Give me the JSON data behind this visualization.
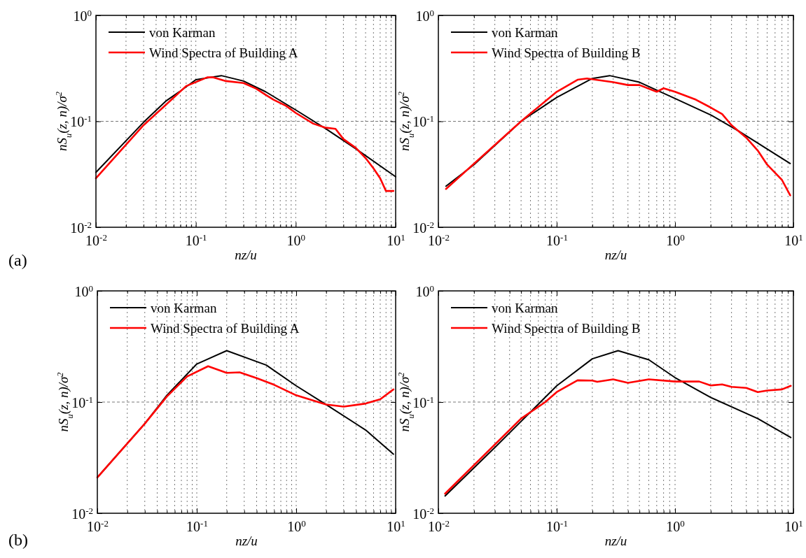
{
  "chart_data": [
    {
      "type": "line",
      "xlabel": "nz/u",
      "ylabel": "nS$_{u}$(z, n)/σ$^{2}$",
      "log": "xy",
      "grid": true,
      "legend": "top left",
      "annotations": [
        "(a)"
      ],
      "xlim": [
        0.01,
        10
      ],
      "ylim": [
        0.01,
        1
      ],
      "xticks": [
        {
          "value": 0.01,
          "label": "10$^{-2}$"
        },
        {
          "value": 0.02,
          "label": null
        },
        {
          "value": 0.03,
          "label": null
        },
        {
          "value": 0.04,
          "label": null
        },
        {
          "value": 0.05,
          "label": null
        },
        {
          "value": 0.06,
          "label": null
        },
        {
          "value": 0.07,
          "label": null
        },
        {
          "value": 0.08,
          "label": null
        },
        {
          "value": 0.09,
          "label": null
        },
        {
          "value": 0.1,
          "label": "10$^{-1}$"
        },
        {
          "value": 0.2,
          "label": null
        },
        {
          "value": 0.3,
          "label": null
        },
        {
          "value": 0.4,
          "label": null
        },
        {
          "value": 0.5,
          "label": null
        },
        {
          "value": 0.6,
          "label": null
        },
        {
          "value": 0.7,
          "label": null
        },
        {
          "value": 0.8,
          "label": null
        },
        {
          "value": 0.9,
          "label": null
        },
        {
          "value": 1,
          "label": "10$^{0}$"
        },
        {
          "value": 2,
          "label": null
        },
        {
          "value": 3,
          "label": null
        },
        {
          "value": 4,
          "label": null
        },
        {
          "value": 5,
          "label": null
        },
        {
          "value": 6,
          "label": null
        },
        {
          "value": 7,
          "label": null
        },
        {
          "value": 8,
          "label": null
        },
        {
          "value": 9,
          "label": null
        },
        {
          "value": 10,
          "label": "10$^{1}$"
        }
      ],
      "yticks": [
        {
          "value": 0.01,
          "label": "10$^{-2}$"
        },
        {
          "value": 0.1,
          "label": "10$^{-1}$"
        },
        {
          "value": 1,
          "label": "10$^{0}$"
        }
      ],
      "series": [
        {
          "name": "von Karman",
          "color": "#000000",
          "x": [
            0.01,
            0.03,
            0.05,
            0.07,
            0.1,
            0.18,
            0.3,
            0.5,
            1,
            2,
            4,
            10
          ],
          "values": [
            0.033,
            0.098,
            0.155,
            0.193,
            0.247,
            0.27,
            0.24,
            0.19,
            0.128,
            0.085,
            0.055,
            0.03
          ]
        },
        {
          "name": "Wind Spectra of Building A",
          "color": "#ff0000",
          "x": [
            0.01,
            0.03,
            0.05,
            0.08,
            0.13,
            0.15,
            0.2,
            0.3,
            0.4,
            0.5,
            0.6,
            0.8,
            1,
            1.5,
            2,
            2.5,
            3,
            4,
            5,
            6,
            7,
            8,
            9.5
          ],
          "values": [
            0.029,
            0.092,
            0.143,
            0.215,
            0.26,
            0.26,
            0.24,
            0.23,
            0.204,
            0.178,
            0.16,
            0.14,
            0.12,
            0.095,
            0.087,
            0.085,
            0.068,
            0.056,
            0.045,
            0.036,
            0.029,
            0.022,
            0.022
          ]
        }
      ]
    },
    {
      "type": "line",
      "xlabel": "nz/u",
      "ylabel": "nS$_{u}$(z, n)/σ$^{2}$",
      "log": "xy",
      "grid": true,
      "legend": "top left",
      "xlim": [
        0.01,
        10
      ],
      "ylim": [
        0.01,
        1
      ],
      "xticks": [
        {
          "value": 0.01,
          "label": "10$^{-2}$"
        },
        {
          "value": 0.02,
          "label": null
        },
        {
          "value": 0.03,
          "label": null
        },
        {
          "value": 0.04,
          "label": null
        },
        {
          "value": 0.05,
          "label": null
        },
        {
          "value": 0.06,
          "label": null
        },
        {
          "value": 0.07,
          "label": null
        },
        {
          "value": 0.08,
          "label": null
        },
        {
          "value": 0.09,
          "label": null
        },
        {
          "value": 0.1,
          "label": "10$^{-1}$"
        },
        {
          "value": 0.2,
          "label": null
        },
        {
          "value": 0.3,
          "label": null
        },
        {
          "value": 0.4,
          "label": null
        },
        {
          "value": 0.5,
          "label": null
        },
        {
          "value": 0.6,
          "label": null
        },
        {
          "value": 0.7,
          "label": null
        },
        {
          "value": 0.8,
          "label": null
        },
        {
          "value": 0.9,
          "label": null
        },
        {
          "value": 1,
          "label": "10$^{0}$"
        },
        {
          "value": 2,
          "label": null
        },
        {
          "value": 3,
          "label": null
        },
        {
          "value": 4,
          "label": null
        },
        {
          "value": 5,
          "label": null
        },
        {
          "value": 6,
          "label": null
        },
        {
          "value": 7,
          "label": null
        },
        {
          "value": 8,
          "label": null
        },
        {
          "value": 9,
          "label": null
        },
        {
          "value": 10,
          "label": "10$^{1}$"
        }
      ],
      "yticks": [
        {
          "value": 0.01,
          "label": "10$^{-2}$"
        },
        {
          "value": 0.1,
          "label": "10$^{-1}$"
        },
        {
          "value": 1,
          "label": "10$^{0}$"
        }
      ],
      "series": [
        {
          "name": "von Karman",
          "color": "#000000",
          "x": [
            0.0116,
            0.02,
            0.05,
            0.1,
            0.2,
            0.28,
            0.5,
            1,
            2,
            3.5,
            9.4
          ],
          "values": [
            0.0244,
            0.039,
            0.1,
            0.168,
            0.254,
            0.27,
            0.234,
            0.164,
            0.115,
            0.08,
            0.04
          ]
        },
        {
          "name": "Wind Spectra of Building B",
          "color": "#ff0000",
          "x": [
            0.0116,
            0.05,
            0.1,
            0.15,
            0.18,
            0.3,
            0.4,
            0.5,
            0.7,
            0.8,
            1,
            1.5,
            2,
            2.5,
            3,
            4,
            5,
            6,
            8,
            9.4
          ],
          "values": [
            0.023,
            0.1,
            0.19,
            0.247,
            0.254,
            0.234,
            0.22,
            0.22,
            0.19,
            0.205,
            0.19,
            0.16,
            0.135,
            0.117,
            0.092,
            0.07,
            0.053,
            0.039,
            0.028,
            0.02
          ]
        }
      ]
    },
    {
      "type": "line",
      "xlabel": "nz/u",
      "ylabel": "nS$_{u}$(z, n)/σ$^{2}$",
      "log": "xy",
      "grid": true,
      "legend": "top left",
      "annotations": [
        "(b)"
      ],
      "xlim": [
        0.01,
        10
      ],
      "ylim": [
        0.01,
        1
      ],
      "xticks": [
        {
          "value": 0.01,
          "label": "10$^{-2}$"
        },
        {
          "value": 0.02,
          "label": null
        },
        {
          "value": 0.03,
          "label": null
        },
        {
          "value": 0.04,
          "label": null
        },
        {
          "value": 0.05,
          "label": null
        },
        {
          "value": 0.06,
          "label": null
        },
        {
          "value": 0.07,
          "label": null
        },
        {
          "value": 0.08,
          "label": null
        },
        {
          "value": 0.09,
          "label": null
        },
        {
          "value": 0.1,
          "label": "10$^{-1}$"
        },
        {
          "value": 0.2,
          "label": null
        },
        {
          "value": 0.3,
          "label": null
        },
        {
          "value": 0.4,
          "label": null
        },
        {
          "value": 0.5,
          "label": null
        },
        {
          "value": 0.6,
          "label": null
        },
        {
          "value": 0.7,
          "label": null
        },
        {
          "value": 0.8,
          "label": null
        },
        {
          "value": 0.9,
          "label": null
        },
        {
          "value": 1,
          "label": "10$^{0}$"
        },
        {
          "value": 2,
          "label": null
        },
        {
          "value": 3,
          "label": null
        },
        {
          "value": 4,
          "label": null
        },
        {
          "value": 5,
          "label": null
        },
        {
          "value": 6,
          "label": null
        },
        {
          "value": 7,
          "label": null
        },
        {
          "value": 8,
          "label": null
        },
        {
          "value": 9,
          "label": null
        },
        {
          "value": 10,
          "label": "10$^{1}$"
        }
      ],
      "yticks": [
        {
          "value": 0.01,
          "label": "10$^{-2}$"
        },
        {
          "value": 0.1,
          "label": "10$^{-1}$"
        },
        {
          "value": 1,
          "label": "10$^{0}$"
        }
      ],
      "series": [
        {
          "name": "von Karman",
          "color": "#000000",
          "x": [
            0.01,
            0.03,
            0.05,
            0.1,
            0.2,
            0.5,
            1,
            2,
            5,
            9.5
          ],
          "values": [
            0.021,
            0.064,
            0.115,
            0.22,
            0.29,
            0.215,
            0.14,
            0.095,
            0.056,
            0.034
          ]
        },
        {
          "name": "Wind Spectra of Building A",
          "color": "#ff0000",
          "x": [
            0.01,
            0.03,
            0.05,
            0.08,
            0.13,
            0.2,
            0.27,
            0.4,
            0.6,
            1,
            2,
            3,
            5,
            7,
            9.5
          ],
          "values": [
            0.021,
            0.064,
            0.112,
            0.17,
            0.21,
            0.183,
            0.185,
            0.164,
            0.143,
            0.115,
            0.095,
            0.091,
            0.097,
            0.106,
            0.13
          ]
        }
      ]
    },
    {
      "type": "line",
      "xlabel": "nz/u",
      "ylabel": "nS$_{u}$(z, n)/σ$^{2}$",
      "log": "xy",
      "grid": true,
      "legend": "top left",
      "xlim": [
        0.01,
        10
      ],
      "ylim": [
        0.01,
        1
      ],
      "xticks": [
        {
          "value": 0.01,
          "label": "10$^{-2}$"
        },
        {
          "value": 0.02,
          "label": null
        },
        {
          "value": 0.03,
          "label": null
        },
        {
          "value": 0.04,
          "label": null
        },
        {
          "value": 0.05,
          "label": null
        },
        {
          "value": 0.06,
          "label": null
        },
        {
          "value": 0.07,
          "label": null
        },
        {
          "value": 0.08,
          "label": null
        },
        {
          "value": 0.09,
          "label": null
        },
        {
          "value": 0.1,
          "label": "10$^{-1}$"
        },
        {
          "value": 0.2,
          "label": null
        },
        {
          "value": 0.3,
          "label": null
        },
        {
          "value": 0.4,
          "label": null
        },
        {
          "value": 0.5,
          "label": null
        },
        {
          "value": 0.6,
          "label": null
        },
        {
          "value": 0.7,
          "label": null
        },
        {
          "value": 0.8,
          "label": null
        },
        {
          "value": 0.9,
          "label": null
        },
        {
          "value": 1,
          "label": "10$^{0}$"
        },
        {
          "value": 2,
          "label": null
        },
        {
          "value": 3,
          "label": null
        },
        {
          "value": 4,
          "label": null
        },
        {
          "value": 5,
          "label": null
        },
        {
          "value": 6,
          "label": null
        },
        {
          "value": 7,
          "label": null
        },
        {
          "value": 8,
          "label": null
        },
        {
          "value": 9,
          "label": null
        },
        {
          "value": 10,
          "label": "10$^{1}$"
        }
      ],
      "yticks": [
        {
          "value": 0.01,
          "label": "10$^{-2}$"
        },
        {
          "value": 0.1,
          "label": "10$^{-1}$"
        },
        {
          "value": 1,
          "label": "10$^{0}$"
        }
      ],
      "series": [
        {
          "name": "von Karman",
          "color": "#000000",
          "x": [
            0.0114,
            0.03,
            0.05,
            0.1,
            0.2,
            0.33,
            0.6,
            1,
            2,
            5,
            9.5
          ],
          "values": [
            0.0143,
            0.039,
            0.067,
            0.14,
            0.245,
            0.29,
            0.24,
            0.166,
            0.11,
            0.071,
            0.048
          ]
        },
        {
          "name": "Wind Spectra of Building B",
          "color": "#ff0000",
          "x": [
            0.0114,
            0.05,
            0.08,
            0.1,
            0.15,
            0.2,
            0.22,
            0.3,
            0.4,
            0.6,
            1,
            1.6,
            2,
            2.5,
            3,
            4,
            5,
            6,
            8,
            9.5
          ],
          "values": [
            0.015,
            0.071,
            0.1,
            0.123,
            0.157,
            0.156,
            0.152,
            0.16,
            0.149,
            0.16,
            0.153,
            0.153,
            0.141,
            0.144,
            0.137,
            0.134,
            0.123,
            0.127,
            0.13,
            0.14
          ]
        }
      ]
    }
  ]
}
